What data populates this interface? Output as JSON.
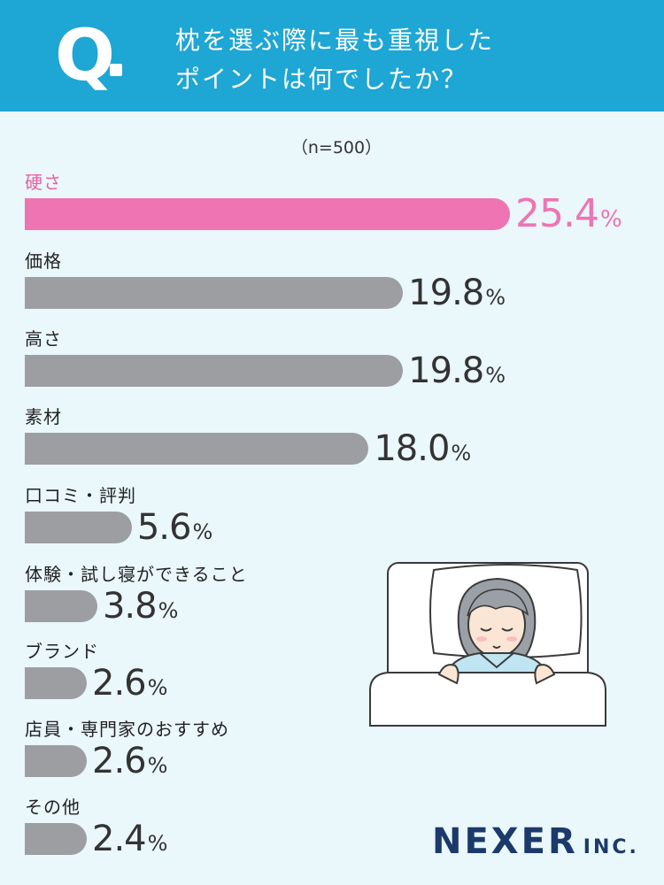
{
  "header": {
    "q_mark": "Q",
    "question_line1": "枕を選ぶ際に最も重視した",
    "question_line2": "ポイントは何でしたか？"
  },
  "note": "（n=500）",
  "chart_data": {
    "type": "bar",
    "orientation": "horizontal",
    "title": "枕を選ぶ際に最も重視したポイントは何でしたか？",
    "sample_size": "n=500",
    "categories": [
      "硬さ",
      "価格",
      "高さ",
      "素材",
      "口コミ・評判",
      "体験・試し寝ができること",
      "ブランド",
      "店員・専門家のおすすめ",
      "その他"
    ],
    "values": [
      25.4,
      19.8,
      19.8,
      18.0,
      5.6,
      3.8,
      2.6,
      2.6,
      2.4
    ],
    "value_labels": [
      "25.4",
      "19.8",
      "19.8",
      "18.0",
      "5.6",
      "3.8",
      "2.6",
      "2.6",
      "2.4"
    ],
    "unit": "%",
    "highlight_index": 0,
    "colors": {
      "highlight": "#ee74b3",
      "default": "#9d9ea2"
    }
  },
  "brand": {
    "name": "NEXER",
    "suffix": "INC."
  },
  "colors": {
    "header": "#1ea6d4",
    "background": "#eaf7fb",
    "brand": "#1b3a6b"
  }
}
